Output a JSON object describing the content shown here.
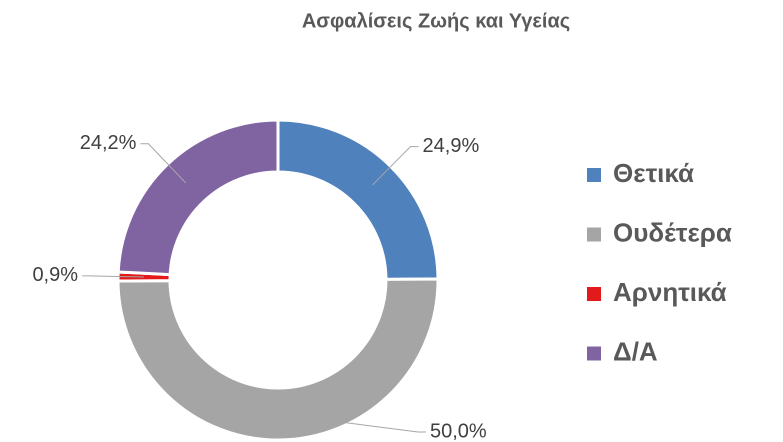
{
  "chart_data": {
    "type": "donut",
    "title": "Ασφαλίσεις Ζωής και Υγείας",
    "categories": [
      "Θετικά",
      "Ουδέτερα",
      "Αρνητικά",
      "Δ/Α"
    ],
    "values": [
      24.9,
      50.0,
      0.9,
      24.2
    ],
    "value_labels": [
      "24,9%",
      "50,0%",
      "0,9%",
      "24,2%"
    ],
    "colors": [
      "#4f81bd",
      "#a5a5a5",
      "#e31a1c",
      "#8064a2"
    ],
    "legend": "right"
  }
}
